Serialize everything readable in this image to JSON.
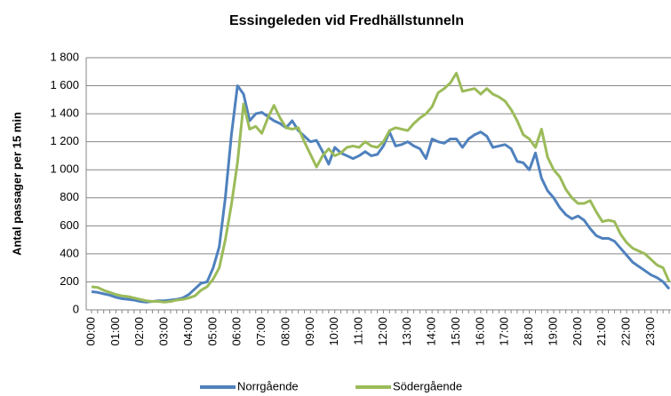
{
  "chart_data": {
    "type": "line",
    "title": "Essingeleden vid Fredhällstunneln",
    "y_label": "Antal passager per 15 min",
    "categories": [
      "00:00",
      null,
      null,
      null,
      "01:00",
      null,
      null,
      null,
      "02:00",
      null,
      null,
      null,
      "03:00",
      null,
      null,
      null,
      "04:00",
      null,
      null,
      null,
      "05:00",
      null,
      null,
      null,
      "06:00",
      null,
      null,
      null,
      "07:00",
      null,
      null,
      null,
      "08:00",
      null,
      null,
      null,
      "09:00",
      null,
      null,
      null,
      "10:00",
      null,
      null,
      null,
      "11:00",
      null,
      null,
      null,
      "12:00",
      null,
      null,
      null,
      "13:00",
      null,
      null,
      null,
      "14:00",
      null,
      null,
      null,
      "15:00",
      null,
      null,
      null,
      "16:00",
      null,
      null,
      null,
      "17:00",
      null,
      null,
      null,
      "18:00",
      null,
      null,
      null,
      "19:00",
      null,
      null,
      null,
      "20:00",
      null,
      null,
      null,
      "21:00",
      null,
      null,
      null,
      "22:00",
      null,
      null,
      null,
      "23:00",
      null,
      null,
      null
    ],
    "series": [
      {
        "name": "Norrgående",
        "color": "#4f81bd",
        "values": [
          130,
          125,
          115,
          105,
          90,
          80,
          75,
          70,
          60,
          55,
          60,
          65,
          65,
          70,
          75,
          85,
          110,
          150,
          190,
          200,
          300,
          450,
          800,
          1250,
          1600,
          1540,
          1350,
          1400,
          1410,
          1380,
          1350,
          1330,
          1300,
          1350,
          1280,
          1240,
          1200,
          1210,
          1130,
          1040,
          1160,
          1120,
          1100,
          1080,
          1100,
          1130,
          1100,
          1110,
          1170,
          1270,
          1170,
          1180,
          1200,
          1170,
          1150,
          1080,
          1220,
          1200,
          1190,
          1220,
          1220,
          1160,
          1220,
          1250,
          1270,
          1240,
          1160,
          1170,
          1180,
          1150,
          1060,
          1050,
          1000,
          1120,
          940,
          850,
          800,
          730,
          680,
          650,
          670,
          640,
          580,
          530,
          510,
          510,
          490,
          440,
          390,
          340,
          310,
          280,
          250,
          230,
          200,
          150
        ]
      },
      {
        "name": "Södergående",
        "color": "#9bbb59",
        "values": [
          165,
          160,
          140,
          125,
          110,
          100,
          95,
          85,
          75,
          65,
          60,
          60,
          55,
          60,
          70,
          75,
          85,
          100,
          140,
          165,
          220,
          300,
          500,
          750,
          1050,
          1470,
          1290,
          1310,
          1260,
          1370,
          1460,
          1370,
          1300,
          1290,
          1300,
          1200,
          1110,
          1020,
          1100,
          1150,
          1100,
          1120,
          1160,
          1170,
          1160,
          1200,
          1170,
          1160,
          1200,
          1280,
          1300,
          1290,
          1280,
          1330,
          1370,
          1400,
          1450,
          1550,
          1580,
          1620,
          1690,
          1560,
          1570,
          1580,
          1540,
          1580,
          1540,
          1520,
          1490,
          1430,
          1350,
          1250,
          1220,
          1160,
          1290,
          1090,
          1000,
          950,
          860,
          800,
          760,
          760,
          780,
          700,
          630,
          640,
          630,
          540,
          480,
          440,
          420,
          400,
          360,
          320,
          300,
          200
        ]
      }
    ],
    "ylim": [
      0,
      1800
    ],
    "yticks": [
      0,
      200,
      400,
      600,
      800,
      {
        "value": 1000,
        "label": "1 000"
      },
      {
        "value": 1200,
        "label": "1 200"
      },
      {
        "value": 1400,
        "label": "1 400"
      },
      {
        "value": 1600,
        "label": "1 600"
      },
      {
        "value": 1800,
        "label": "1 800"
      }
    ],
    "grid": true,
    "legend": "bottom"
  }
}
